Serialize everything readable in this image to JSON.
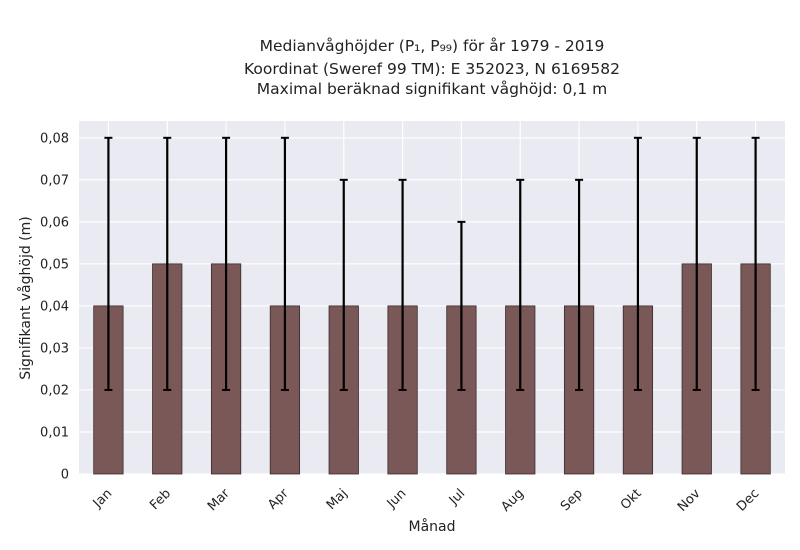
{
  "chart_data": {
    "type": "bar",
    "title_lines": [
      "Medianvåghöjder (P₁, P₉₉) för år 1979 - 2019",
      "Koordinat (Sweref 99 TM): E 352023, N 6169582",
      "Maximal beräknad signifikant våghöjd: 0,1 m"
    ],
    "xlabel": "Månad",
    "ylabel": "Signifikant våghöjd (m)",
    "categories": [
      "Jan",
      "Feb",
      "Mar",
      "Apr",
      "Maj",
      "Jun",
      "Jul",
      "Aug",
      "Sep",
      "Okt",
      "Nov",
      "Dec"
    ],
    "values": [
      0.04,
      0.05,
      0.05,
      0.04,
      0.04,
      0.04,
      0.04,
      0.04,
      0.04,
      0.04,
      0.05,
      0.05
    ],
    "error_low": [
      0.02,
      0.02,
      0.02,
      0.02,
      0.02,
      0.02,
      0.02,
      0.02,
      0.02,
      0.02,
      0.02,
      0.02
    ],
    "error_high": [
      0.08,
      0.08,
      0.08,
      0.08,
      0.07,
      0.07,
      0.06,
      0.07,
      0.07,
      0.08,
      0.08,
      0.08
    ],
    "ylim": [
      0,
      0.084
    ],
    "yticks": [
      0,
      0.01,
      0.02,
      0.03,
      0.04,
      0.05,
      0.06,
      0.07,
      0.08
    ],
    "ytick_labels": [
      "0",
      "0,01",
      "0,02",
      "0,03",
      "0,04",
      "0,05",
      "0,06",
      "0,07",
      "0,08"
    ],
    "grid": true,
    "colors": {
      "bar": "#7b5858",
      "bar_edge": "#3a2a2a",
      "error": "#000000",
      "plot_bg": "#eaeaf2",
      "grid": "#ffffff"
    }
  }
}
